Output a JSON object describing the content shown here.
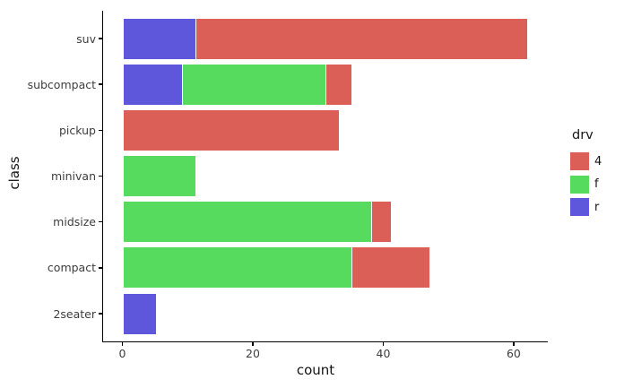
{
  "chart_data": {
    "type": "bar",
    "orientation": "horizontal",
    "stacked": true,
    "title": "",
    "xlabel": "count",
    "ylabel": "class",
    "grid": false,
    "xlim": [
      -3.1,
      65.1
    ],
    "xticks": [
      0,
      20,
      40,
      60
    ],
    "xtick_labels": [
      "0",
      "20",
      "40",
      "60"
    ],
    "categories": [
      "suv",
      "subcompact",
      "pickup",
      "minivan",
      "midsize",
      "compact",
      "2seater"
    ],
    "series": [
      {
        "name": "4",
        "color": "#db5f57",
        "values": [
          51,
          4,
          33,
          0,
          3,
          12,
          0
        ]
      },
      {
        "name": "f",
        "color": "#57db5f",
        "values": [
          0,
          22,
          0,
          11,
          38,
          35,
          0
        ]
      },
      {
        "name": "r",
        "color": "#5f57db",
        "values": [
          11,
          9,
          0,
          0,
          0,
          0,
          5
        ]
      }
    ],
    "stack_order_from_zero": [
      "r",
      "f",
      "4"
    ],
    "totals": {
      "suv": 62,
      "subcompact": 35,
      "pickup": 33,
      "minivan": 11,
      "midsize": 41,
      "compact": 47,
      "2seater": 5
    },
    "legend": {
      "title": "drv",
      "position": "right",
      "entries": [
        {
          "label": "4",
          "color": "#db5f57"
        },
        {
          "label": "f",
          "color": "#57db5f"
        },
        {
          "label": "r",
          "color": "#5f57db"
        }
      ]
    }
  }
}
